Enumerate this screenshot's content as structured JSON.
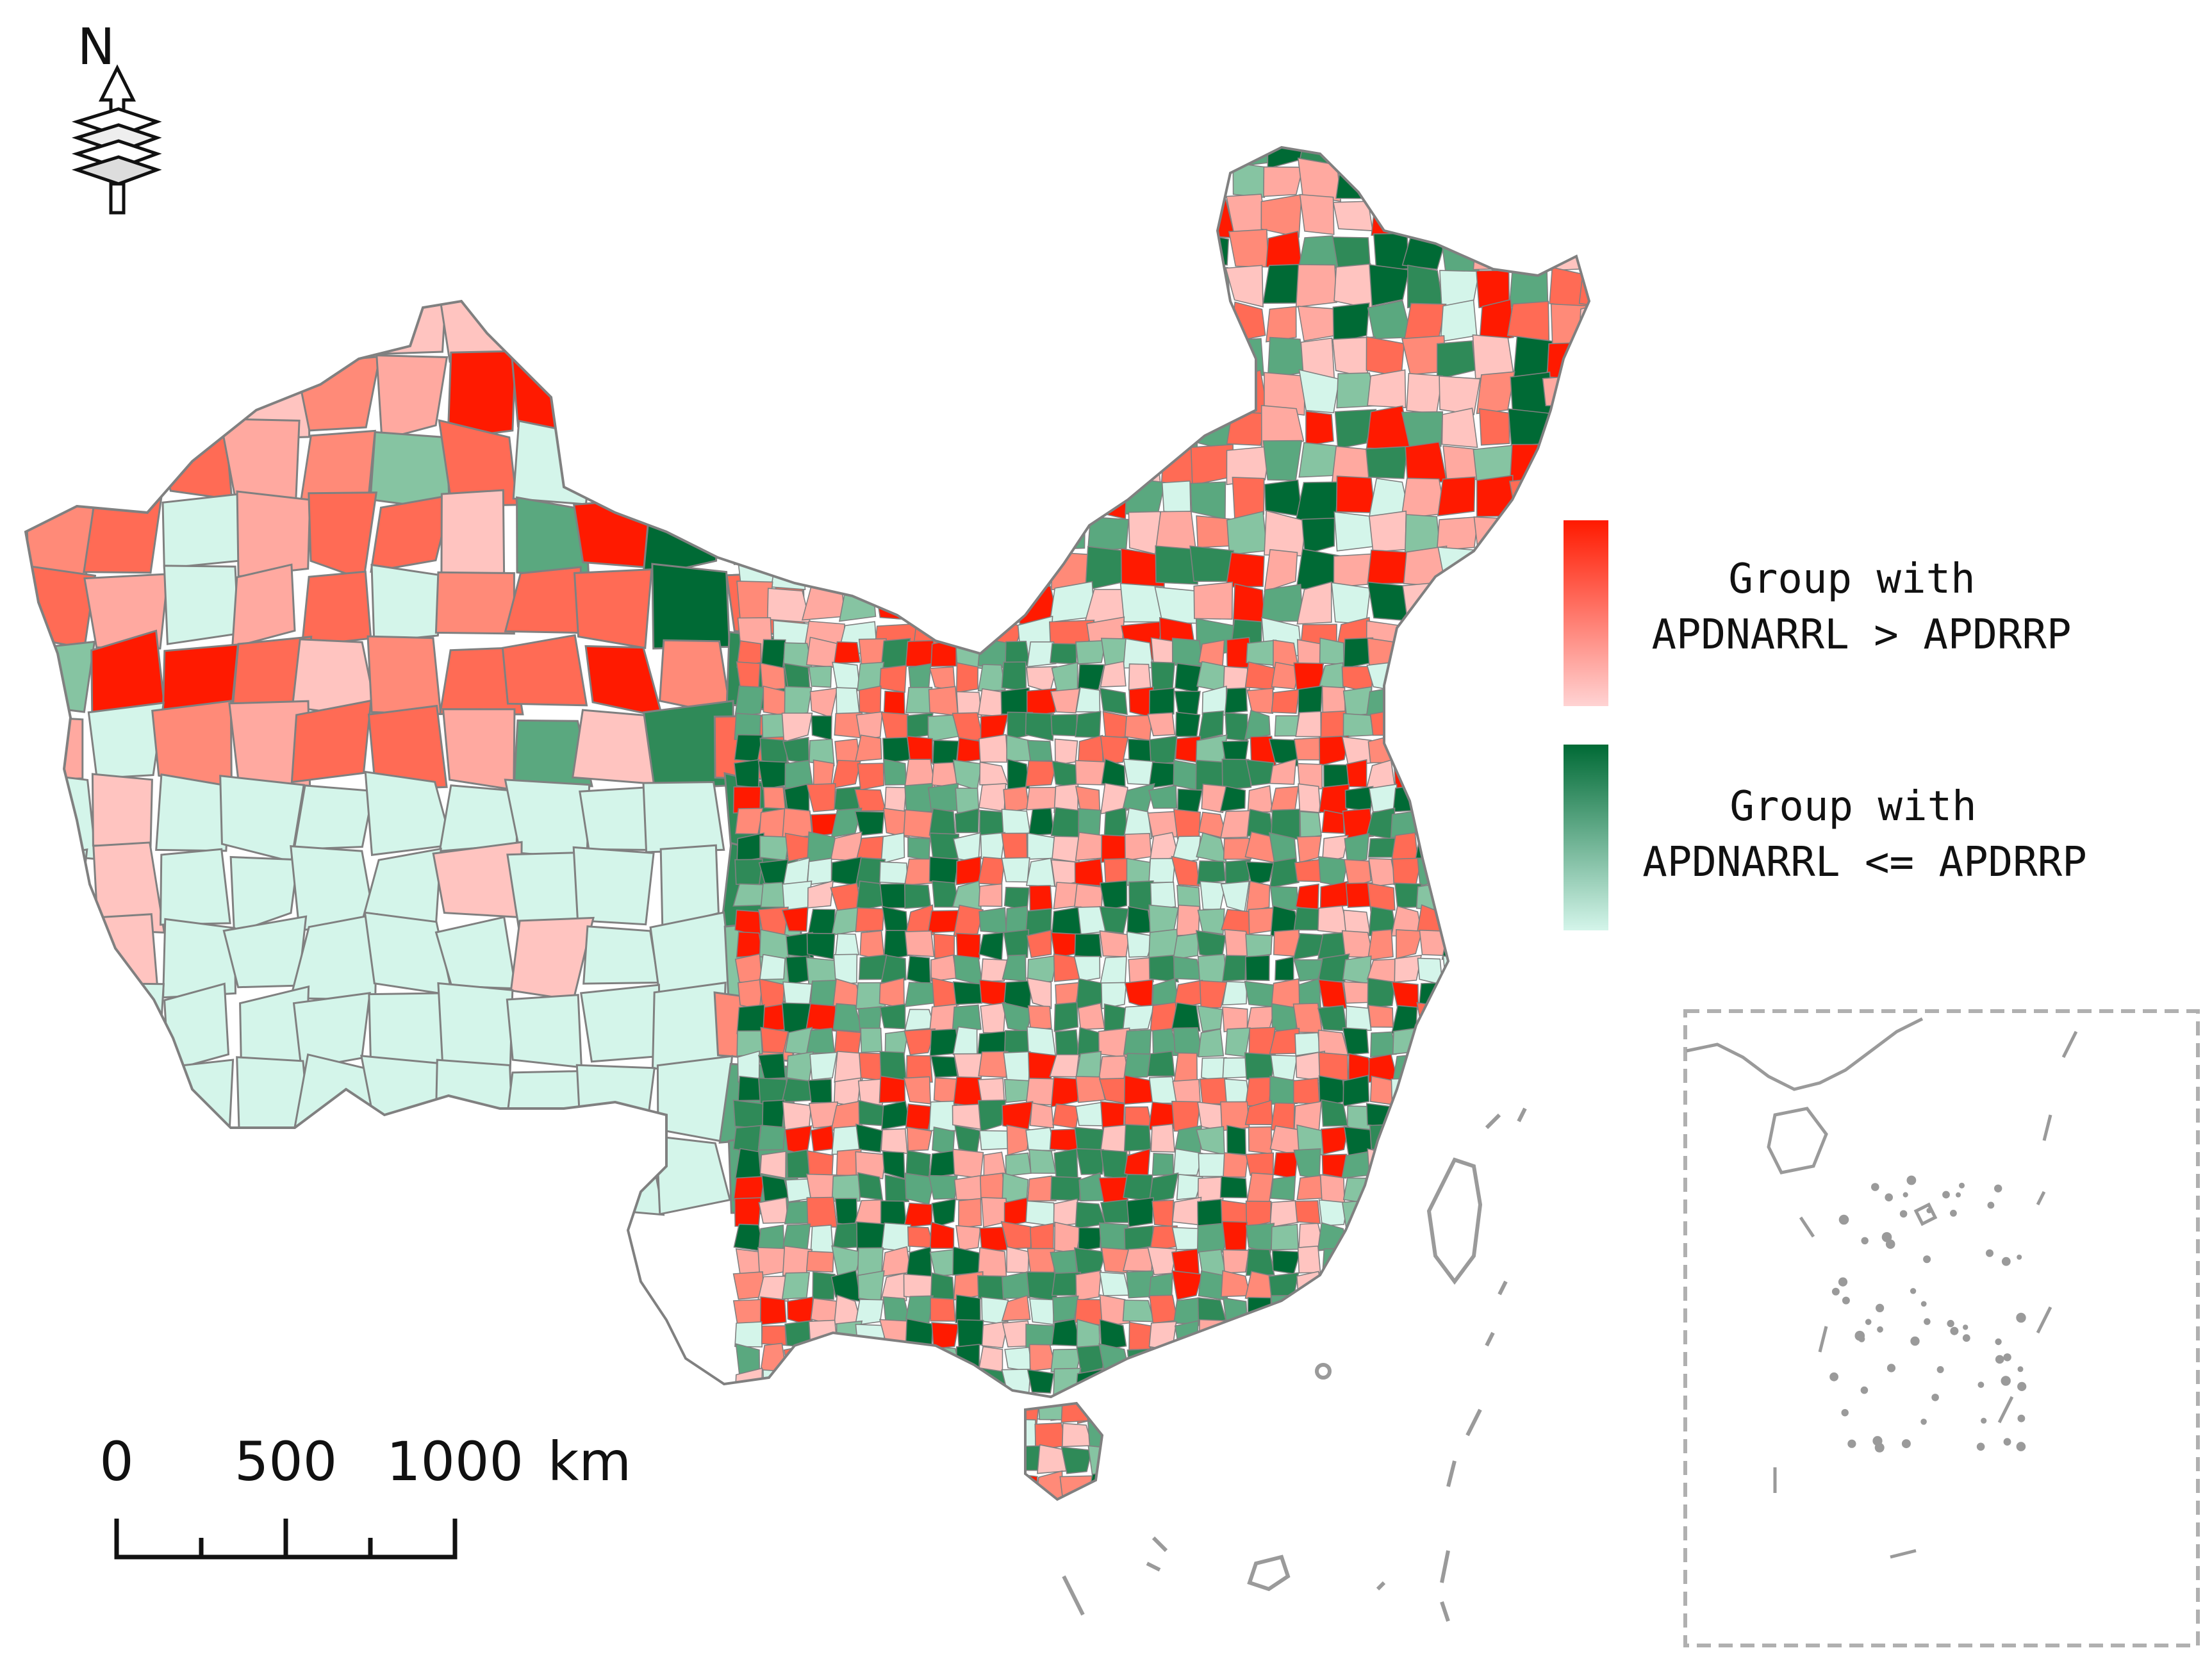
{
  "north_arrow": {
    "label": "N"
  },
  "legend": {
    "groups": [
      {
        "line1": "Group with",
        "line2": "APDNARRL > APDRRP",
        "color_dark": "#ff1a00",
        "color_light": "#ffd3d3"
      },
      {
        "line1": "Group with",
        "line2": "APDNARRL <= APDRRP",
        "color_dark": "#006a35",
        "color_light": "#d4f5ea"
      }
    ]
  },
  "scale_bar": {
    "ticks": [
      "0",
      "500",
      "1000"
    ],
    "unit": "km"
  },
  "colors": {
    "red_dark": "#ff1a00",
    "red_mid": "#ff6b55",
    "red_light": "#ffc4c0",
    "green_dark": "#006a35",
    "green_mid": "#5aa87f",
    "green_light": "#d4f5ea",
    "boundary": "#808080"
  }
}
